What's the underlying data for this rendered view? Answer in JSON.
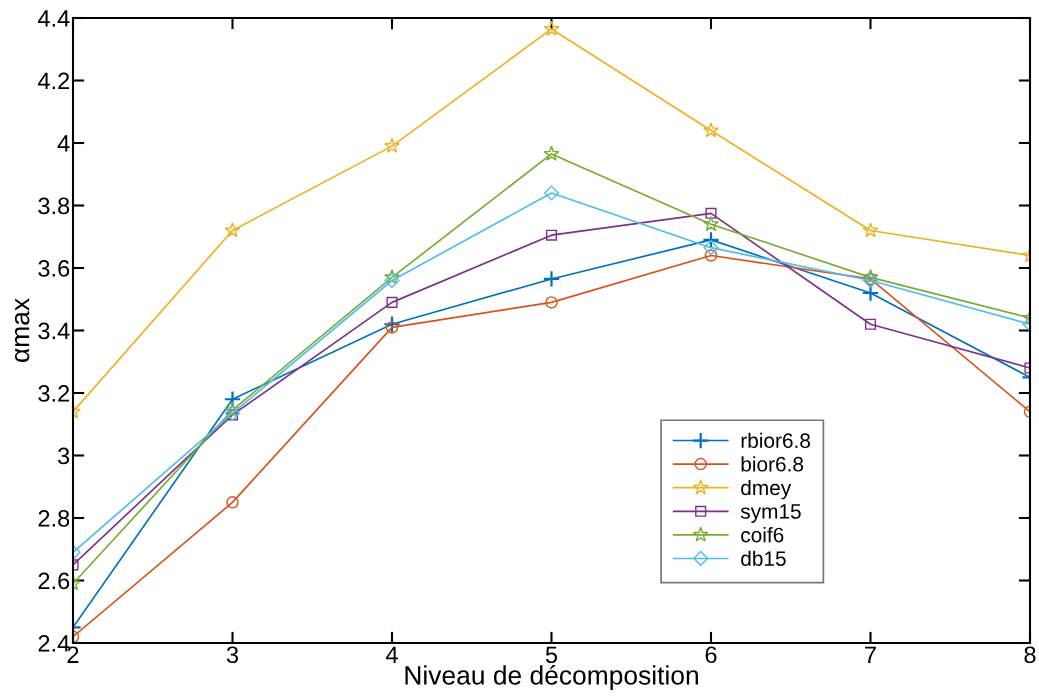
{
  "chart_data": {
    "type": "line",
    "xlabel": "Niveau de décomposition",
    "ylabel": "αmax",
    "x": [
      2,
      3,
      4,
      5,
      6,
      7,
      8
    ],
    "series": [
      {
        "name": "rbior6.8",
        "color": "#0072bd",
        "marker": "cross",
        "values": [
          2.45,
          3.18,
          3.42,
          3.565,
          3.69,
          3.52,
          3.25
        ]
      },
      {
        "name": "bior6.8",
        "color": "#d95319",
        "marker": "circle",
        "values": [
          2.42,
          2.85,
          3.41,
          3.49,
          3.64,
          3.565,
          3.14
        ]
      },
      {
        "name": "dmey",
        "color": "#edb120",
        "marker": "star",
        "values": [
          3.14,
          3.72,
          3.99,
          4.365,
          4.04,
          3.72,
          3.64
        ]
      },
      {
        "name": "sym15",
        "color": "#7e2f8e",
        "marker": "square",
        "values": [
          2.65,
          3.13,
          3.49,
          3.705,
          3.775,
          3.42,
          3.28
        ]
      },
      {
        "name": "coif6",
        "color": "#77ac30",
        "marker": "star",
        "values": [
          2.59,
          3.145,
          3.57,
          3.965,
          3.74,
          3.57,
          3.44
        ]
      },
      {
        "name": "db15",
        "color": "#4dbeee",
        "marker": "diamond",
        "values": [
          2.69,
          3.135,
          3.56,
          3.84,
          3.665,
          3.56,
          3.42
        ]
      }
    ],
    "xlim": [
      2,
      8
    ],
    "xticks": [
      2,
      3,
      4,
      5,
      6,
      7,
      8
    ],
    "ylim": [
      2.4,
      4.4
    ],
    "yticks": [
      2.4,
      2.6,
      2.8,
      3,
      3.2,
      3.4,
      3.6,
      3.8,
      4,
      4.2,
      4.4
    ],
    "grid": false,
    "legend": "bottom right",
    "line_style": "solid"
  }
}
